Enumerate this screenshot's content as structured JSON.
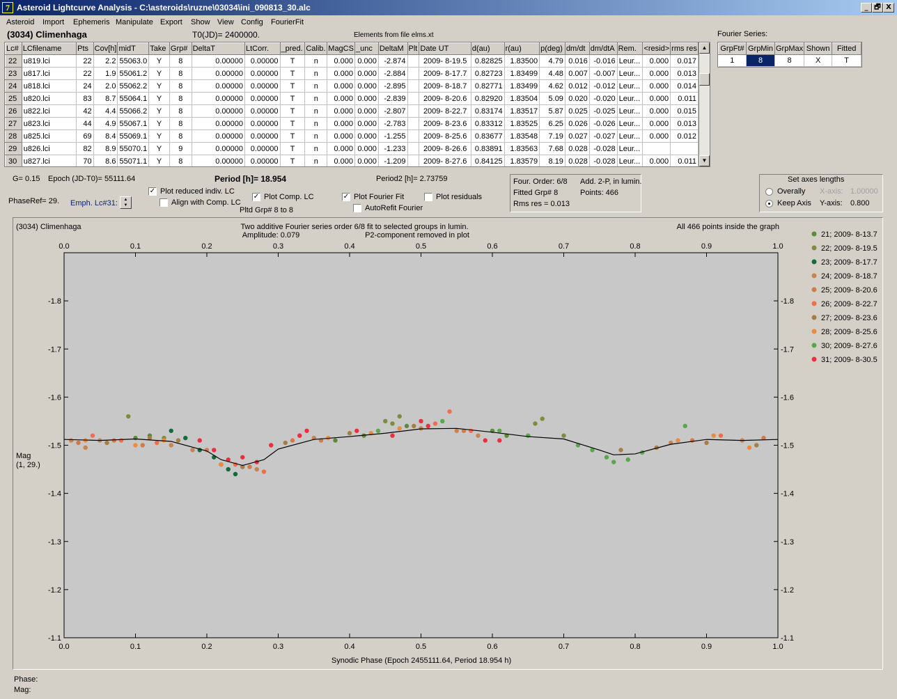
{
  "window": {
    "title": "Asteroid Lightcurve Analysis - C:\\asteroids\\ruzne\\03034\\ini_090813_30.alc",
    "app_icon": "7",
    "min_icon": "_",
    "restore_icon": "🗗",
    "close_icon": "X"
  },
  "menu": [
    "Asteroid",
    "Import",
    "Ephemeris",
    "Manipulate",
    "Export",
    "Show",
    "View",
    "Config",
    "FourierFit"
  ],
  "header": {
    "asteroid": "(3034) Climenhaga",
    "t0": "T0(JD)= 2400000.",
    "elements": "Elements from file elms.xt"
  },
  "table": {
    "columns": [
      "Lc#",
      "LCfilename",
      "Pts",
      "Cov[h]",
      "midT",
      "Take",
      "Grp#",
      "DeltaT",
      "LtCorr.",
      "_pred.",
      "Calib.",
      "MagCS",
      "_unc",
      "DeltaM",
      "Plt",
      "Date UT",
      "d(au)",
      "r(au)",
      "p(deg)",
      "dm/dt",
      "dm/dtA",
      "Rem.",
      "<resid>",
      "rms res"
    ],
    "rows": [
      [
        "22",
        "u819.lci",
        "22",
        "2.2",
        "55063.0",
        "Y",
        "8",
        "0.00000",
        "0.00000",
        "T",
        "n",
        "0.000",
        "0.000",
        "-2.874",
        "",
        "2009- 8-19.5",
        "0.82825",
        "1.83500",
        "4.79",
        "0.016",
        "-0.016",
        "Leur...",
        "0.000",
        "0.017"
      ],
      [
        "23",
        "u817.lci",
        "22",
        "1.9",
        "55061.2",
        "Y",
        "8",
        "0.00000",
        "0.00000",
        "T",
        "n",
        "0.000",
        "0.000",
        "-2.884",
        "",
        "2009- 8-17.7",
        "0.82723",
        "1.83499",
        "4.48",
        "0.007",
        "-0.007",
        "Leur...",
        "0.000",
        "0.013"
      ],
      [
        "24",
        "u818.lci",
        "24",
        "2.0",
        "55062.2",
        "Y",
        "8",
        "0.00000",
        "0.00000",
        "T",
        "n",
        "0.000",
        "0.000",
        "-2.895",
        "",
        "2009- 8-18.7",
        "0.82771",
        "1.83499",
        "4.62",
        "0.012",
        "-0.012",
        "Leur...",
        "0.000",
        "0.014"
      ],
      [
        "25",
        "u820.lci",
        "83",
        "8.7",
        "55064.1",
        "Y",
        "8",
        "0.00000",
        "0.00000",
        "T",
        "n",
        "0.000",
        "0.000",
        "-2.839",
        "",
        "2009- 8-20.6",
        "0.82920",
        "1.83504",
        "5.09",
        "0.020",
        "-0.020",
        "Leur...",
        "0.000",
        "0.011"
      ],
      [
        "26",
        "u822.lci",
        "42",
        "4.4",
        "55066.2",
        "Y",
        "8",
        "0.00000",
        "0.00000",
        "T",
        "n",
        "0.000",
        "0.000",
        "-2.807",
        "",
        "2009- 8-22.7",
        "0.83174",
        "1.83517",
        "5.87",
        "0.025",
        "-0.025",
        "Leur...",
        "0.000",
        "0.015"
      ],
      [
        "27",
        "u823.lci",
        "44",
        "4.9",
        "55067.1",
        "Y",
        "8",
        "0.00000",
        "0.00000",
        "T",
        "n",
        "0.000",
        "0.000",
        "-2.783",
        "",
        "2009- 8-23.6",
        "0.83312",
        "1.83525",
        "6.25",
        "0.026",
        "-0.026",
        "Leur...",
        "0.000",
        "0.013"
      ],
      [
        "28",
        "u825.lci",
        "69",
        "8.4",
        "55069.1",
        "Y",
        "8",
        "0.00000",
        "0.00000",
        "T",
        "n",
        "0.000",
        "0.000",
        "-1.255",
        "",
        "2009- 8-25.6",
        "0.83677",
        "1.83548",
        "7.19",
        "0.027",
        "-0.027",
        "Leur...",
        "0.000",
        "0.012"
      ],
      [
        "29",
        "u826.lci",
        "82",
        "8.9",
        "55070.1",
        "Y",
        "9",
        "0.00000",
        "0.00000",
        "T",
        "n",
        "0.000",
        "0.000",
        "-1.233",
        "",
        "2009- 8-26.6",
        "0.83891",
        "1.83563",
        "7.68",
        "0.028",
        "-0.028",
        "Leur...",
        "",
        ""
      ],
      [
        "30",
        "u827.lci",
        "70",
        "8.6",
        "55071.1",
        "Y",
        "8",
        "0.00000",
        "0.00000",
        "T",
        "n",
        "0.000",
        "0.000",
        "-1.209",
        "",
        "2009- 8-27.6",
        "0.84125",
        "1.83579",
        "8.19",
        "0.028",
        "-0.028",
        "Leur...",
        "0.000",
        "0.011"
      ]
    ]
  },
  "fourier": {
    "label": "Fourier Series:",
    "columns": [
      "GrpFt#",
      "GrpMin",
      "GrpMax",
      "Shown",
      "Fitted"
    ],
    "row": [
      "1",
      "8",
      "8",
      "X",
      "T"
    ]
  },
  "controls": {
    "g": "G= 0.15",
    "epoch": "Epoch (JD-T0)= 55111.64",
    "period": "Period [h]= 18.954",
    "period2": "Period2 [h]= 2.73759",
    "phaseref": "PhaseRef= 29.",
    "emph": "Emph. Lc#31:",
    "cb_reduced": "Plot reduced indiv. LC",
    "cb_align": "Align with Comp. LC",
    "cb_comp": "Plot Comp. LC",
    "pltd": "Pltd Grp#  8  to  8",
    "cb_fourier": "Plot Fourier Fit",
    "cb_autorefit": "AutoRefit Fourier",
    "cb_residuals": "Plot residuals",
    "info_order": "Four. Order:  6/8",
    "info_add": "Add. 2-P, in lumin.",
    "info_grp": "Fitted Grp# 8",
    "info_points": "Points: 466",
    "info_rms": "Rms res     = 0.013",
    "axes_title": "Set axes lengths",
    "radio_overally": "Overally",
    "radio_keep": "Keep Axis",
    "xaxis_label": "X-axis:",
    "xaxis_val": "1.00000",
    "yaxis_label": "Y-axis:",
    "yaxis_val": "0.800",
    "check_mark": "✓"
  },
  "chart_data": {
    "type": "scatter",
    "title": "(3034) Climenhaga",
    "subtitle1": "Two additive Fourier series order 6/8 fit to selected groups in lumin.",
    "subtitle2": "Amplitude: 0.079",
    "subtitle3": "P2-component removed in plot",
    "note": "All 466 points inside the graph",
    "xlabel": "Synodic Phase (Epoch 2455111.64, Period 18.954 h)",
    "ylabel1": "Mag",
    "ylabel2": "(1, 29.)",
    "xlim": [
      0,
      1
    ],
    "ylim": [
      -1.1,
      -1.9
    ],
    "xticks": [
      "0.0",
      "0.1",
      "0.2",
      "0.3",
      "0.4",
      "0.5",
      "0.6",
      "0.7",
      "0.8",
      "0.9",
      "1.0"
    ],
    "yticks": [
      "-1.8",
      "-1.7",
      "-1.6",
      "-1.5",
      "-1.4",
      "-1.3",
      "-1.2",
      "-1.1"
    ],
    "fit_curve": {
      "x": [
        0,
        0.05,
        0.1,
        0.15,
        0.2,
        0.22,
        0.25,
        0.28,
        0.3,
        0.35,
        0.4,
        0.45,
        0.5,
        0.55,
        0.6,
        0.65,
        0.7,
        0.75,
        0.77,
        0.8,
        0.85,
        0.9,
        0.95,
        1.0
      ],
      "y": [
        -1.512,
        -1.51,
        -1.513,
        -1.508,
        -1.488,
        -1.47,
        -1.458,
        -1.47,
        -1.492,
        -1.512,
        -1.518,
        -1.525,
        -1.534,
        -1.535,
        -1.527,
        -1.518,
        -1.513,
        -1.49,
        -1.48,
        -1.482,
        -1.502,
        -1.512,
        -1.51,
        -1.512
      ]
    },
    "series": [
      {
        "name": "21; 2009- 8-13.7",
        "color": "#5e8a3c",
        "x": [
          0.1,
          0.12,
          0.38,
          0.42,
          0.48,
          0.6,
          0.62
        ],
        "y": [
          -1.515,
          -1.52,
          -1.51,
          -1.52,
          -1.54,
          -1.53,
          -1.52
        ]
      },
      {
        "name": "22; 2009- 8-19.5",
        "color": "#7f8b3d",
        "x": [
          0.09,
          0.14,
          0.45,
          0.46,
          0.47,
          0.66,
          0.67,
          0.7
        ],
        "y": [
          -1.56,
          -1.515,
          -1.55,
          -1.545,
          -1.56,
          -1.545,
          -1.555,
          -1.52
        ]
      },
      {
        "name": "23; 2009- 8-17.7",
        "color": "#126b3b",
        "x": [
          0.15,
          0.17,
          0.19,
          0.21,
          0.22,
          0.23,
          0.24
        ],
        "y": [
          -1.53,
          -1.515,
          -1.49,
          -1.475,
          -1.46,
          -1.45,
          -1.44
        ]
      },
      {
        "name": "24; 2009- 8-18.7",
        "color": "#c8844e",
        "x": [
          0.01,
          0.03,
          0.05,
          0.15,
          0.18,
          0.27,
          0.35,
          0.55,
          0.58,
          0.85,
          0.95
        ],
        "y": [
          -1.51,
          -1.495,
          -1.51,
          -1.5,
          -1.49,
          -1.45,
          -1.515,
          -1.53,
          -1.52,
          -1.505,
          -1.51
        ]
      },
      {
        "name": "25; 2009- 8-20.6",
        "color": "#d17a48",
        "x": [
          0.02,
          0.07,
          0.11,
          0.2,
          0.26,
          0.32,
          0.36,
          0.5,
          0.56,
          0.88,
          0.98
        ],
        "y": [
          -1.505,
          -1.51,
          -1.5,
          -1.49,
          -1.455,
          -1.51,
          -1.51,
          -1.535,
          -1.53,
          -1.51,
          -1.515
        ]
      },
      {
        "name": "26; 2009- 8-22.7",
        "color": "#f26d49",
        "x": [
          0.04,
          0.08,
          0.13,
          0.24,
          0.28,
          0.33,
          0.52,
          0.54,
          0.57,
          0.92
        ],
        "y": [
          -1.52,
          -1.51,
          -1.505,
          -1.46,
          -1.445,
          -1.52,
          -1.545,
          -1.57,
          -1.53,
          -1.52
        ]
      },
      {
        "name": "27; 2009- 8-23.6",
        "color": "#a57e43",
        "x": [
          0.06,
          0.12,
          0.16,
          0.25,
          0.31,
          0.4,
          0.49,
          0.78,
          0.83,
          0.9,
          0.97
        ],
        "y": [
          -1.505,
          -1.515,
          -1.51,
          -1.455,
          -1.505,
          -1.525,
          -1.54,
          -1.49,
          -1.495,
          -1.505,
          -1.5
        ]
      },
      {
        "name": "28; 2009- 8-25.6",
        "color": "#ea8b3e",
        "x": [
          0.03,
          0.1,
          0.14,
          0.22,
          0.29,
          0.37,
          0.43,
          0.47,
          0.86,
          0.91,
          0.96
        ],
        "y": [
          -1.51,
          -1.5,
          -1.51,
          -1.46,
          -1.5,
          -1.515,
          -1.525,
          -1.535,
          -1.51,
          -1.52,
          -1.495
        ]
      },
      {
        "name": "30; 2009- 8-27.6",
        "color": "#57a84a",
        "x": [
          0.44,
          0.53,
          0.61,
          0.65,
          0.72,
          0.74,
          0.76,
          0.77,
          0.79,
          0.81,
          0.87
        ],
        "y": [
          -1.53,
          -1.55,
          -1.53,
          -1.52,
          -1.5,
          -1.49,
          -1.475,
          -1.465,
          -1.47,
          -1.485,
          -1.54
        ]
      },
      {
        "name": "31; 2009- 8-30.5",
        "color": "#ec2f3d",
        "x": [
          0.19,
          0.21,
          0.23,
          0.25,
          0.27,
          0.29,
          0.33,
          0.34,
          0.41,
          0.46,
          0.5,
          0.51,
          0.59,
          0.61
        ],
        "y": [
          -1.51,
          -1.49,
          -1.47,
          -1.475,
          -1.465,
          -1.5,
          -1.52,
          -1.53,
          -1.53,
          -1.52,
          -1.55,
          -1.54,
          -1.51,
          -1.51
        ]
      }
    ]
  },
  "status": {
    "phase": "Phase:",
    "mag": "Mag:"
  }
}
